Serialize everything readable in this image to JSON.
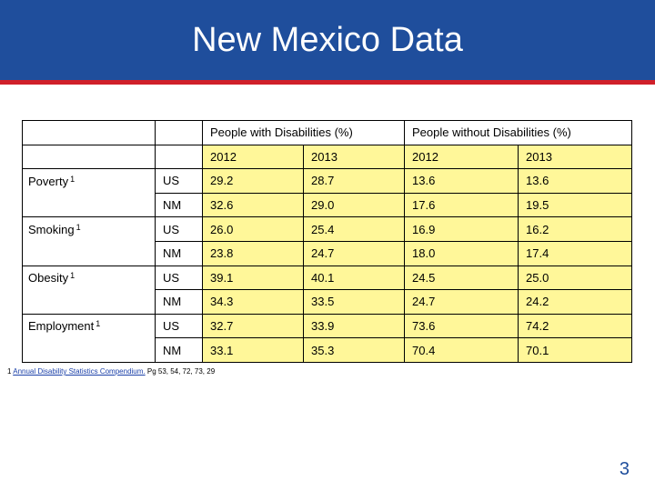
{
  "slide": {
    "title": "New Mexico Data",
    "page_number": "3"
  },
  "table": {
    "group_headers": [
      "People with Disabilities (%)",
      "People without Disabilities (%)"
    ],
    "years": [
      "2012",
      "2013",
      "2012",
      "2013"
    ],
    "categories": [
      {
        "label": "Poverty",
        "sup": "1",
        "rows": [
          {
            "region": "US",
            "values": [
              "29.2",
              "28.7",
              "13.6",
              "13.6"
            ]
          },
          {
            "region": "NM",
            "values": [
              "32.6",
              "29.0",
              "17.6",
              "19.5"
            ]
          }
        ]
      },
      {
        "label": "Smoking",
        "sup": "1",
        "rows": [
          {
            "region": "US",
            "values": [
              "26.0",
              "25.4",
              "16.9",
              "16.2"
            ]
          },
          {
            "region": "NM",
            "values": [
              "23.8",
              "24.7",
              "18.0",
              "17.4"
            ]
          }
        ]
      },
      {
        "label": "Obesity",
        "sup": "1",
        "rows": [
          {
            "region": "US",
            "values": [
              "39.1",
              "40.1",
              "24.5",
              "25.0"
            ]
          },
          {
            "region": "NM",
            "values": [
              "34.3",
              "33.5",
              "24.7",
              "24.2"
            ]
          }
        ]
      },
      {
        "label": "Employment",
        "sup": "1",
        "rows": [
          {
            "region": "US",
            "values": [
              "32.7",
              "33.9",
              "73.6",
              "74.2"
            ]
          },
          {
            "region": "NM",
            "values": [
              "33.1",
              "35.3",
              "70.4",
              "70.1"
            ]
          }
        ]
      }
    ]
  },
  "footnote": {
    "number": "1",
    "link_text": "Annual Disability Statistics Compendium.",
    "suffix": " Pg 53, 54, 72, 73, 29"
  },
  "colors": {
    "header": "#1f4e9c",
    "stripe": "#d0202a",
    "cell_highlight": "#fff799"
  }
}
